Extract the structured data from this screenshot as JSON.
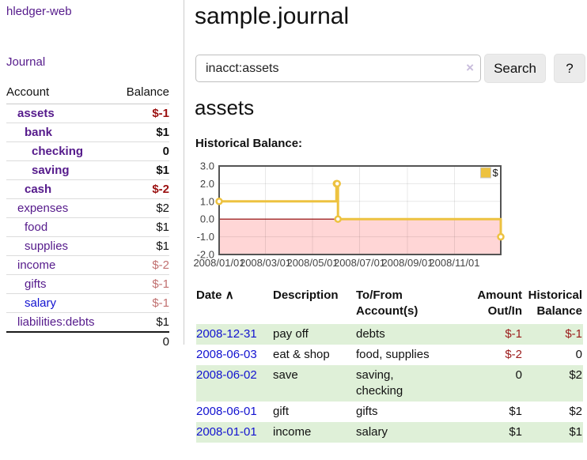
{
  "brand": "hledger-web",
  "nav": {
    "journal_label": "Journal"
  },
  "sidebar": {
    "headers": {
      "account": "Account",
      "balance": "Balance"
    },
    "accounts": [
      {
        "name": "assets",
        "balance": "$-1",
        "depth": 0,
        "bold": true,
        "balance_class": "neg-strong"
      },
      {
        "name": "bank",
        "balance": "$1",
        "depth": 1,
        "bold": true,
        "balance_class": ""
      },
      {
        "name": "checking",
        "balance": "0",
        "depth": 2,
        "bold": true,
        "balance_class": ""
      },
      {
        "name": "saving",
        "balance": "$1",
        "depth": 2,
        "bold": true,
        "balance_class": ""
      },
      {
        "name": "cash",
        "balance": "$-2",
        "depth": 1,
        "bold": true,
        "balance_class": "neg-strong"
      },
      {
        "name": "expenses",
        "balance": "$2",
        "depth": 0,
        "bold": false,
        "balance_class": ""
      },
      {
        "name": "food",
        "balance": "$1",
        "depth": 1,
        "bold": false,
        "balance_class": ""
      },
      {
        "name": "supplies",
        "balance": "$1",
        "depth": 1,
        "bold": false,
        "balance_class": ""
      },
      {
        "name": "income",
        "balance": "$-2",
        "depth": 0,
        "bold": false,
        "balance_class": "neg-soft"
      },
      {
        "name": "gifts",
        "balance": "$-1",
        "depth": 1,
        "bold": false,
        "balance_class": "neg-soft"
      },
      {
        "name": "salary",
        "balance": "$-1",
        "depth": 1,
        "bold": false,
        "balance_class": "neg-soft",
        "link_class": "blue"
      },
      {
        "name": "liabilities:debts",
        "balance": "$1",
        "depth": 0,
        "bold": false,
        "balance_class": ""
      }
    ],
    "total": "0"
  },
  "header": {
    "title": "sample.journal"
  },
  "search": {
    "value": "inacct:assets",
    "clear_icon": "×",
    "button_label": "Search",
    "help_label": "?"
  },
  "account_page": {
    "heading": "assets",
    "chart_title": "Historical Balance:"
  },
  "chart_data": {
    "type": "line",
    "step": true,
    "title": "Historical Balance",
    "series": [
      {
        "name": "$",
        "color": "#edc240",
        "points": [
          [
            "2008-01-01",
            1
          ],
          [
            "2008-06-01",
            2
          ],
          [
            "2008-06-02",
            2
          ],
          [
            "2008-06-03",
            0
          ],
          [
            "2008-12-31",
            -1
          ]
        ]
      }
    ],
    "x_ticks": [
      "2008/01/01",
      "2008/03/01",
      "2008/05/01",
      "2008/07/01",
      "2008/09/01",
      "2008/11/01"
    ],
    "y_ticks": [
      "3.0",
      "2.0",
      "1.0",
      "0.0",
      "-1.0",
      "-2.0"
    ],
    "ylim": [
      -2,
      3
    ],
    "x_domain": [
      "2008-01-01",
      "2008-12-31"
    ],
    "grid": true,
    "negative_region_color": "#ffd6d6",
    "zero_line_color": "#8b0000",
    "plot_border_color": "#545454",
    "legend": {
      "label": "$",
      "position": "top-right"
    }
  },
  "register": {
    "headers": {
      "date": "Date",
      "sort_icon": "∧",
      "description": "Description",
      "tofrom": "To/From Account(s)",
      "amount": "Amount Out/In",
      "balance": "Historical Balance"
    },
    "rows": [
      {
        "date": "2008-12-31",
        "description": "pay off",
        "accounts": [
          "debts"
        ],
        "amount": "$-1",
        "balance": "$-1",
        "amount_neg": true,
        "balance_neg": true
      },
      {
        "date": "2008-06-03",
        "description": "eat & shop",
        "accounts": [
          "food, supplies"
        ],
        "amount": "$-2",
        "balance": "0",
        "amount_neg": true,
        "balance_neg": false
      },
      {
        "date": "2008-06-02",
        "description": "save",
        "accounts": [
          "saving,",
          "checking"
        ],
        "amount": "0",
        "balance": "$2",
        "amount_neg": false,
        "balance_neg": false
      },
      {
        "date": "2008-06-01",
        "description": "gift",
        "accounts": [
          "gifts"
        ],
        "amount": "$1",
        "balance": "$2",
        "amount_neg": false,
        "balance_neg": false
      },
      {
        "date": "2008-01-01",
        "description": "income",
        "accounts": [
          "salary"
        ],
        "amount": "$1",
        "balance": "$1",
        "amount_neg": false,
        "balance_neg": false
      }
    ]
  },
  "colors": {
    "link_purple": "#551a8b",
    "link_blue": "#1212d0",
    "negative_strong": "#9b1010",
    "negative_soft": "#c17070",
    "register_negative": "#9b1b1b",
    "row_green": "#dff0d8",
    "chart_line_gold": "#edc240",
    "chart_negative_pink": "#ffd6d6",
    "chart_zero_line": "#8b0000",
    "chart_border": "#545454",
    "button_gray": "#ebebeb"
  }
}
